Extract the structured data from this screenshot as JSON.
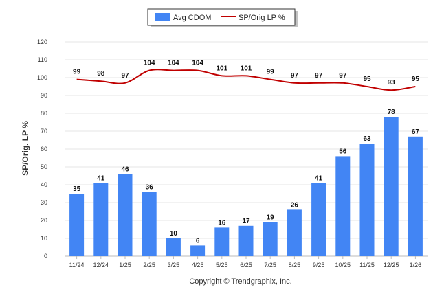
{
  "chart_data": {
    "type": "bar",
    "categories": [
      "11/24",
      "12/24",
      "1/25",
      "2/25",
      "3/25",
      "4/25",
      "5/25",
      "6/25",
      "7/25",
      "8/25",
      "9/25",
      "10/25",
      "11/25",
      "12/25",
      "1/26"
    ],
    "series": [
      {
        "name": "Avg CDOM",
        "kind": "bar",
        "color": "#4285f4",
        "values": [
          35,
          41,
          46,
          36,
          10,
          6,
          16,
          17,
          19,
          26,
          41,
          56,
          63,
          78,
          67
        ]
      },
      {
        "name": "SP/Orig LP %",
        "kind": "line",
        "color": "#c00000",
        "values": [
          99,
          98,
          97,
          104,
          104,
          104,
          101,
          101,
          99,
          97,
          97,
          97,
          95,
          93,
          95
        ]
      }
    ],
    "ylabel": "SP/Orig. LP %",
    "ylim": [
      0,
      120
    ],
    "yticks": [
      0,
      10,
      20,
      30,
      40,
      50,
      60,
      70,
      80,
      90,
      100,
      110,
      120
    ],
    "grid": true,
    "legend": "top-center"
  },
  "footer": "Copyright © Trendgraphix, Inc."
}
